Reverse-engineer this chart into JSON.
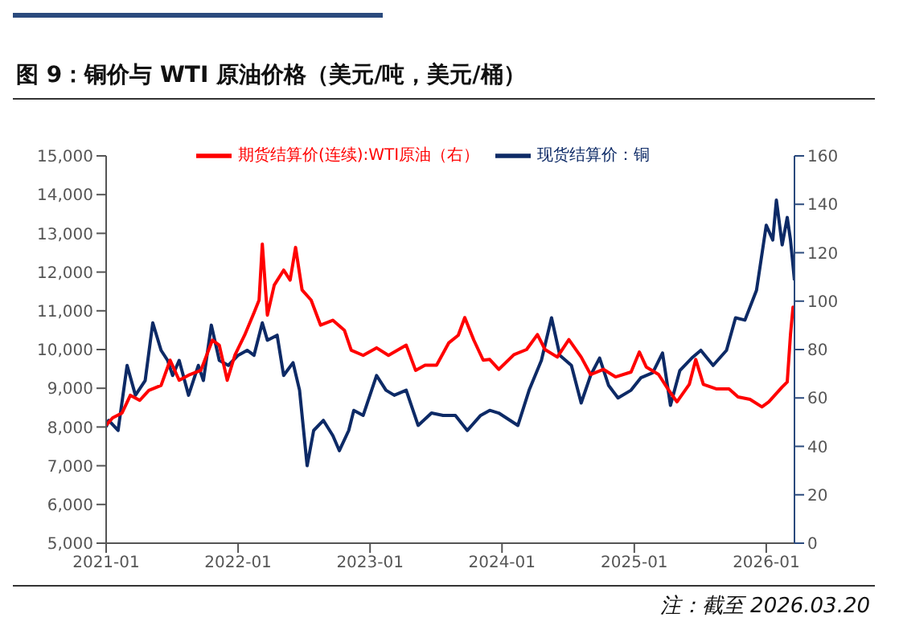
{
  "chart_data": {
    "type": "line",
    "title": "图 9：铜价与 WTI 原油价格（美元/吨，美元/桶）",
    "annotations": [
      "注：截至 2026.03.20"
    ],
    "xlim": [
      "2021-01-01",
      "2026-03-20"
    ],
    "xticks": [
      "2021-01",
      "2022-01",
      "2023-01",
      "2024-01",
      "2025-01",
      "2026-01"
    ],
    "ylim": [
      5000,
      15000
    ],
    "yticks": [
      {
        "value": 5000,
        "label": "5,000"
      },
      {
        "value": 6000,
        "label": "6,000"
      },
      {
        "value": 7000,
        "label": "7,000"
      },
      {
        "value": 8000,
        "label": "8,000"
      },
      {
        "value": 9000,
        "label": "9,000"
      },
      {
        "value": 10000,
        "label": "10,000"
      },
      {
        "value": 11000,
        "label": "11,000"
      },
      {
        "value": 12000,
        "label": "12,000"
      },
      {
        "value": 13000,
        "label": "13,000"
      },
      {
        "value": 14000,
        "label": "14,000"
      },
      {
        "value": 15000,
        "label": "15,000"
      }
    ],
    "y2lim": [
      0,
      160
    ],
    "y2ticks": [
      0,
      20,
      40,
      60,
      80,
      100,
      120,
      140,
      160
    ],
    "legend": "top",
    "grid": false,
    "marker": "none",
    "line_style": "solid",
    "series": [
      {
        "name": "现货结算价：铜",
        "color": "#0d2a66",
        "x": [
          "2021-01-01",
          "2021-01-08",
          "2021-02-03",
          "2021-02-28",
          "2021-03-23",
          "2021-04-19",
          "2021-05-10",
          "2021-06-02",
          "2021-06-20",
          "2021-07-04",
          "2021-07-22",
          "2021-08-17",
          "2021-09-13",
          "2021-09-27",
          "2021-10-19",
          "2021-11-10",
          "2021-12-05",
          "2022-01-01",
          "2022-01-26",
          "2022-02-14",
          "2022-03-09",
          "2022-03-23",
          "2022-04-19",
          "2022-05-07",
          "2022-06-02",
          "2022-06-20",
          "2022-07-11",
          "2022-07-29",
          "2022-08-25",
          "2022-09-20",
          "2022-10-08",
          "2022-11-03",
          "2022-11-17",
          "2022-12-13",
          "2023-01-19",
          "2023-02-14",
          "2023-03-09",
          "2023-04-11",
          "2023-05-14",
          "2023-06-20",
          "2023-07-22",
          "2023-08-25",
          "2023-09-27",
          "2023-11-03",
          "2023-11-28",
          "2023-12-23",
          "2024-02-14",
          "2024-03-16",
          "2024-04-19",
          "2024-05-17",
          "2024-06-09",
          "2024-07-11",
          "2024-08-07",
          "2024-09-02",
          "2024-09-27",
          "2024-10-22",
          "2024-11-17",
          "2024-12-23",
          "2025-01-19",
          "2025-02-21",
          "2025-03-20",
          "2025-04-11",
          "2025-05-07",
          "2025-06-09",
          "2025-07-04",
          "2025-08-07",
          "2025-09-13",
          "2025-10-08",
          "2025-11-03",
          "2025-12-05",
          "2026-01-01",
          "2026-01-19",
          "2026-01-29",
          "2026-02-14",
          "2026-02-28",
          "2026-03-09",
          "2026-03-20"
        ],
        "values": [
          8000,
          8170,
          7910,
          9590,
          8820,
          9200,
          10690,
          9980,
          9720,
          9330,
          9720,
          8820,
          9590,
          9200,
          10630,
          9720,
          9590,
          9850,
          9980,
          9850,
          10690,
          10240,
          10370,
          9330,
          9660,
          8950,
          7000,
          7910,
          8170,
          7780,
          7390,
          7910,
          8430,
          8300,
          9330,
          8950,
          8820,
          8950,
          8040,
          8360,
          8300,
          8300,
          7910,
          8300,
          8430,
          8360,
          8040,
          8950,
          9720,
          10820,
          9850,
          9590,
          8620,
          9330,
          9780,
          9070,
          8750,
          8950,
          9270,
          9400,
          9910,
          8560,
          9460,
          9780,
          9980,
          9590,
          9980,
          10820,
          10760,
          11530,
          13210,
          12830,
          13860,
          12700,
          13410,
          12830,
          11790
        ]
      },
      {
        "name": "期货结算价(连续):WTI原油（右）",
        "color": "#ff0000",
        "axis": "y2",
        "x": [
          "2021-01-01",
          "2021-01-19",
          "2021-02-14",
          "2021-03-09",
          "2021-04-04",
          "2021-04-29",
          "2021-06-02",
          "2021-06-27",
          "2021-07-22",
          "2021-08-17",
          "2021-09-20",
          "2021-10-22",
          "2021-11-10",
          "2021-12-02",
          "2021-12-23",
          "2022-01-19",
          "2022-02-14",
          "2022-02-28",
          "2022-03-09",
          "2022-03-23",
          "2022-04-11",
          "2022-05-07",
          "2022-05-25",
          "2022-06-09",
          "2022-06-27",
          "2022-07-22",
          "2022-08-17",
          "2022-09-20",
          "2022-10-22",
          "2022-11-10",
          "2022-12-13",
          "2023-01-19",
          "2023-02-21",
          "2023-04-11",
          "2023-05-07",
          "2023-06-02",
          "2023-07-04",
          "2023-08-07",
          "2023-09-02",
          "2023-09-20",
          "2023-10-15",
          "2023-11-10",
          "2023-11-28",
          "2023-12-23",
          "2024-02-03",
          "2024-03-09",
          "2024-04-08",
          "2024-04-29",
          "2024-06-02",
          "2024-07-04",
          "2024-08-07",
          "2024-09-02",
          "2024-10-08",
          "2024-11-10",
          "2024-12-23",
          "2025-01-15",
          "2025-02-03",
          "2025-03-09",
          "2025-04-04",
          "2025-04-29",
          "2025-06-02",
          "2025-06-20",
          "2025-07-11",
          "2025-08-17",
          "2025-09-20",
          "2025-10-15",
          "2025-11-17",
          "2025-12-20",
          "2026-01-08",
          "2026-02-14",
          "2026-02-28",
          "2026-03-09",
          "2026-03-16",
          "2026-03-20"
        ],
        "values": [
          48.7,
          51.8,
          53.8,
          61.1,
          59,
          63.1,
          65.2,
          75.6,
          67.3,
          69.4,
          71.4,
          83.9,
          81.8,
          67.3,
          77.6,
          85.9,
          95.2,
          100.4,
          123.6,
          94.2,
          106.6,
          112.8,
          108.7,
          122.2,
          104.6,
          100.4,
          90.1,
          92.1,
          88,
          79.7,
          77.6,
          80.7,
          77.6,
          81.8,
          71.4,
          73.5,
          73.5,
          82.8,
          85.9,
          93.2,
          83.9,
          75.6,
          75.9,
          71.8,
          77.9,
          80,
          86.2,
          80,
          76.9,
          84.1,
          76.9,
          69.7,
          71.8,
          68.7,
          70.7,
          79,
          72.8,
          69.7,
          63.7,
          58.4,
          65.6,
          75.9,
          65.6,
          63.7,
          63.7,
          60.4,
          59.4,
          56.3,
          58.4,
          64.5,
          66.6,
          86.2,
          97.5,
          96.5
        ]
      }
    ]
  }
}
